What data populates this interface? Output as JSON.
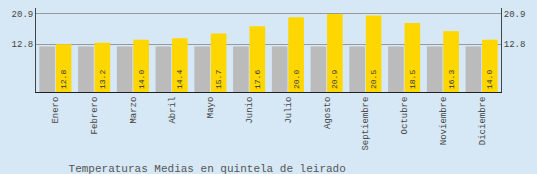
{
  "chart_data": {
    "type": "bar",
    "title": "Temperaturas Medias en quintela de leirado",
    "categories": [
      "Enero",
      "Febrero",
      "Marzo",
      "Abril",
      "Mayo",
      "Junio",
      "Julio",
      "Agosto",
      "Septiembre",
      "Octubre",
      "Noviembre",
      "Diciembre"
    ],
    "series": [
      {
        "color": "#BBBBBB",
        "values": [
          12.2,
          12.2,
          12.2,
          12.2,
          12.2,
          12.2,
          12.2,
          12.2,
          12.2,
          12.2,
          12.2,
          12.2
        ]
      },
      {
        "color": "#FFD700",
        "values": [
          12.8,
          13.2,
          14.0,
          14.4,
          15.7,
          17.6,
          20.0,
          20.9,
          20.5,
          18.5,
          16.3,
          14.0
        ],
        "value_labels": [
          "12.8",
          "13.2",
          "14.0",
          "14.4",
          "15.7",
          "17.6",
          "20.0",
          "20.9",
          "20.5",
          "18.5",
          "16.3",
          "14.0"
        ],
        "data_labels": true
      }
    ],
    "ylim": [
      0.0,
      22.5
    ],
    "yticks": [
      12.8,
      20.9
    ],
    "y2lim": [
      0.0,
      22.5
    ],
    "y2ticks": [
      12.8,
      20.9
    ],
    "grid": true
  }
}
